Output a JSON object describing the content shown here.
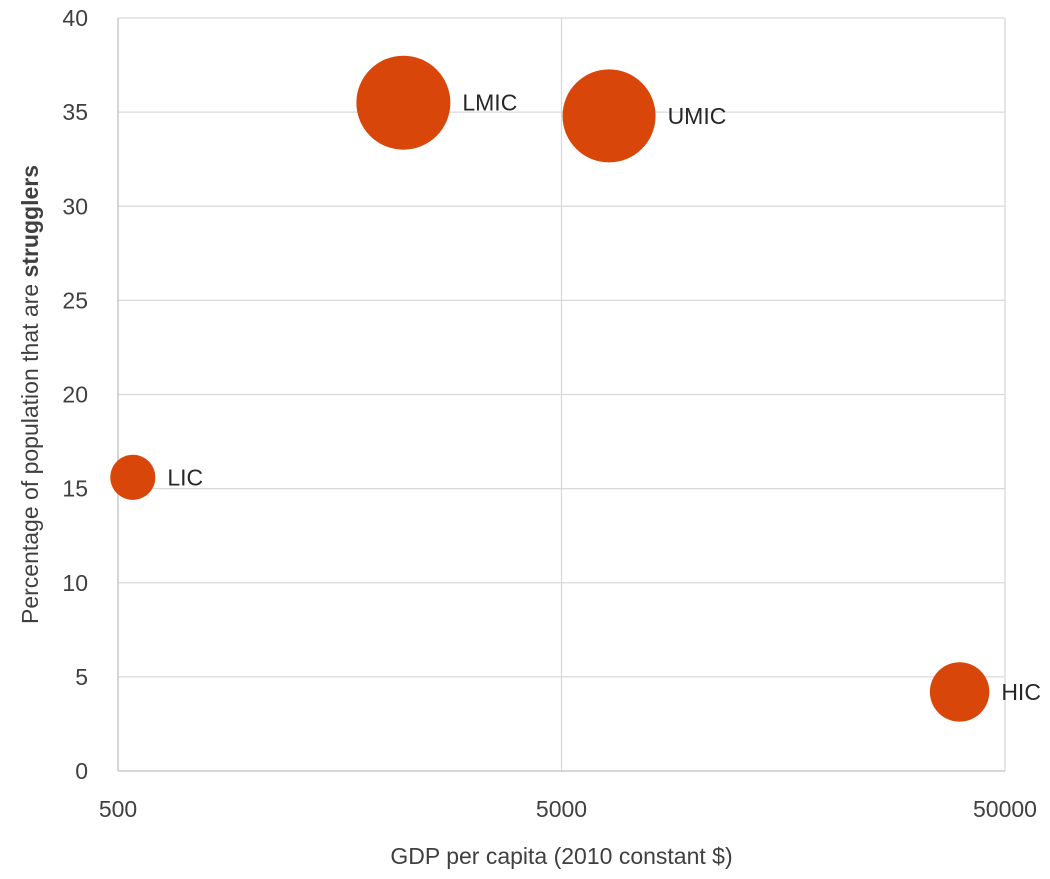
{
  "chart_data": {
    "type": "scatter",
    "subtype": "bubble",
    "xlabel": "GDP per capita (2010 constant $)",
    "ylabel": {
      "prefix": "Percentage of population that are ",
      "bold": "strugglers"
    },
    "x_scale": "log",
    "xlim": [
      500,
      50000
    ],
    "ylim": [
      0,
      40
    ],
    "x_ticks": [
      500,
      5000,
      50000
    ],
    "y_ticks": [
      0,
      5,
      10,
      15,
      20,
      25,
      30,
      35,
      40
    ],
    "grid": true,
    "legend": "none",
    "bubble_color": "#D9460A",
    "points": [
      {
        "label": "LIC",
        "x": 540,
        "y": 15.6,
        "relative_size": 0.23
      },
      {
        "label": "LMIC",
        "x": 2200,
        "y": 35.5,
        "relative_size": 1.0
      },
      {
        "label": "UMIC",
        "x": 6400,
        "y": 34.8,
        "relative_size": 0.98
      },
      {
        "label": "HIC",
        "x": 39500,
        "y": 4.2,
        "relative_size": 0.4
      }
    ]
  }
}
